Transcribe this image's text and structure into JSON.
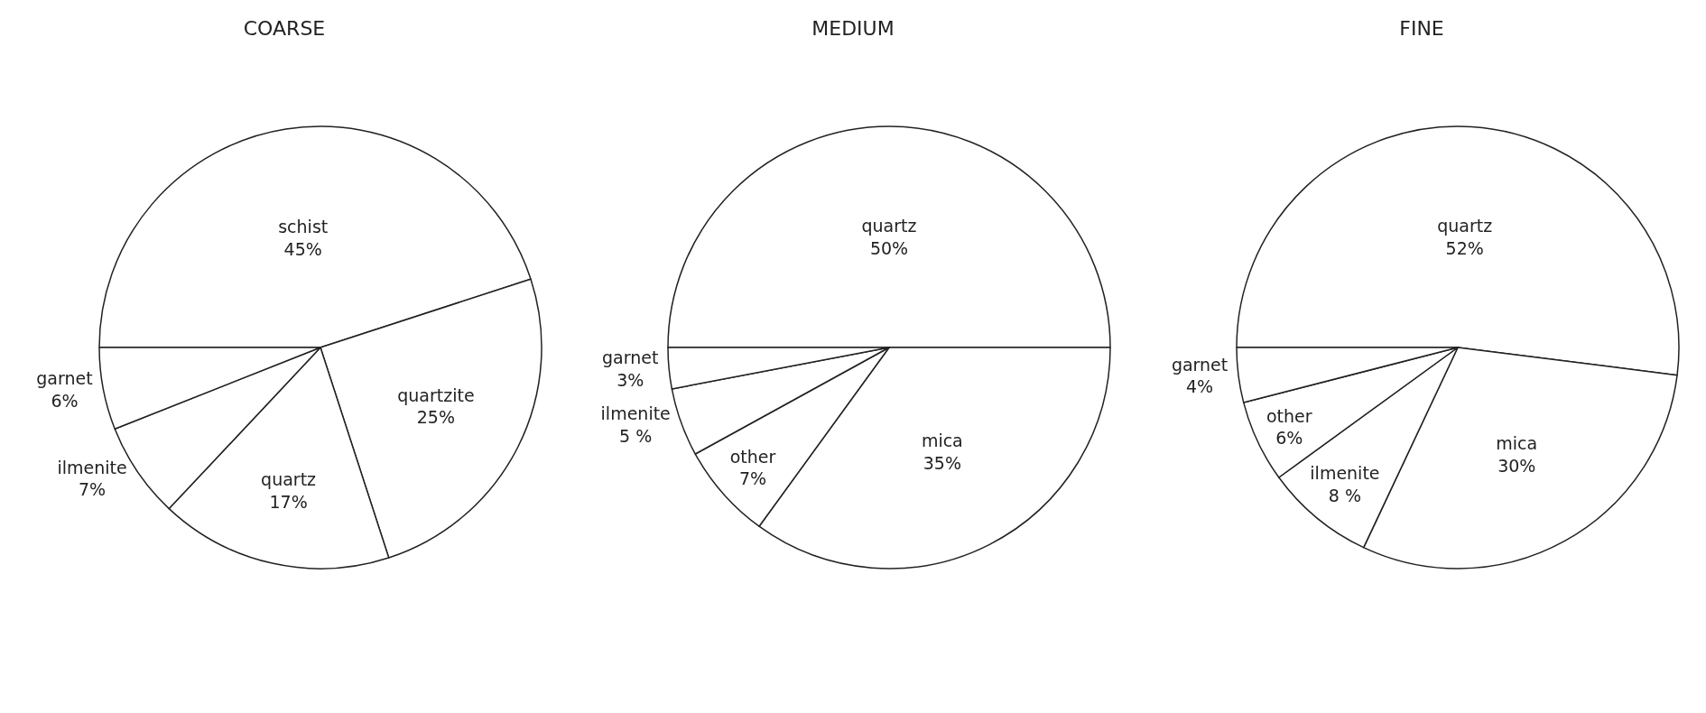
{
  "chart_data": [
    {
      "type": "pie",
      "title": "COARSE",
      "categories": [
        "schist",
        "quartzite",
        "quartz",
        "ilmenite",
        "garnet"
      ],
      "values": [
        45,
        25,
        17,
        7,
        6
      ],
      "value_labels": [
        "45%",
        "25%",
        "17%",
        "7%",
        "6%"
      ],
      "colors": [
        "#ffffff",
        "#ffffff",
        "#ffffff",
        "#ffffff",
        "#ffffff"
      ],
      "legend": false
    },
    {
      "type": "pie",
      "title": "MEDIUM",
      "categories": [
        "quartz",
        "mica",
        "other",
        "ilmenite",
        "garnet"
      ],
      "values": [
        50,
        35,
        7,
        5,
        3
      ],
      "value_labels": [
        "50%",
        "35%",
        "7%",
        "5 %",
        "3%"
      ],
      "colors": [
        "#ffffff",
        "#ffffff",
        "#ffffff",
        "#ffffff",
        "#ffffff"
      ],
      "legend": false
    },
    {
      "type": "pie",
      "title": "FINE",
      "categories": [
        "quartz",
        "mica",
        "ilmenite",
        "other",
        "garnet"
      ],
      "values": [
        52,
        30,
        8,
        6,
        4
      ],
      "value_labels": [
        "52%",
        "30%",
        "8 %",
        "6%",
        "4%"
      ],
      "colors": [
        "#ffffff",
        "#ffffff",
        "#ffffff",
        "#ffffff",
        "#ffffff"
      ],
      "legend": false
    }
  ]
}
